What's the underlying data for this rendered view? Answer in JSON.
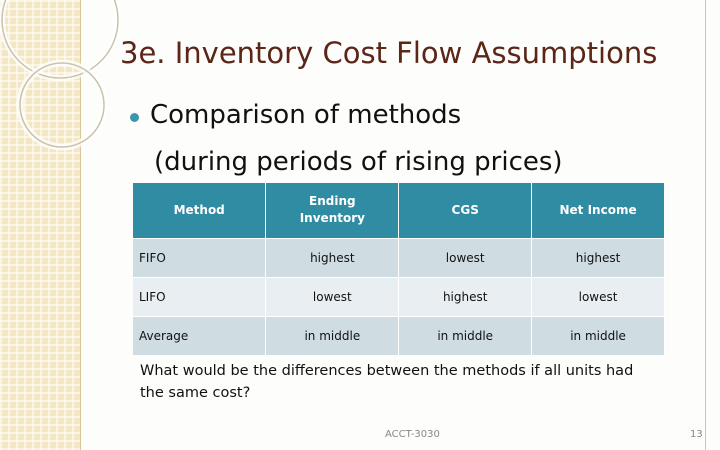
{
  "header": {
    "title": "3e.  Inventory Cost Flow Assumptions"
  },
  "body": {
    "bullet": "Comparison of methods",
    "subline": "(during periods of rising prices)",
    "question": "What would be the differences between the methods if all units had the same cost?"
  },
  "table": {
    "columns": [
      "Method",
      "Ending Inventory",
      "CGS",
      "Net Income"
    ],
    "rows": [
      [
        "FIFO",
        "highest",
        "lowest",
        "highest"
      ],
      [
        "LIFO",
        "lowest",
        "highest",
        "lowest"
      ],
      [
        "Average",
        "in middle",
        "in middle",
        "in middle"
      ]
    ]
  },
  "footer": {
    "course": "ACCT-3030",
    "page": "13"
  }
}
